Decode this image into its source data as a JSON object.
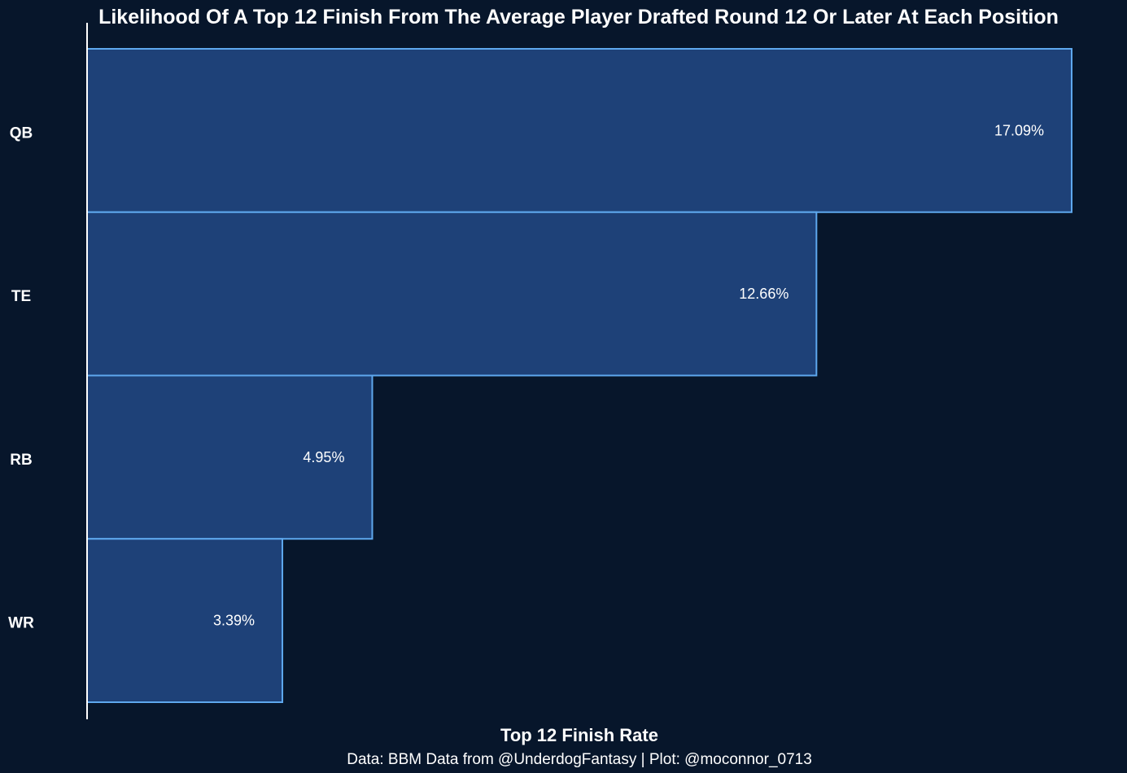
{
  "chart_data": {
    "type": "bar",
    "orientation": "horizontal",
    "title": "Likelihood Of A Top 12 Finish From The Average Player Drafted Round 12 Or Later At Each Position",
    "xlabel": "Top 12 Finish Rate",
    "ylabel": "",
    "caption": "Data: BBM Data from @UnderdogFantasy | Plot: @moconnor_0713",
    "categories": [
      "QB",
      "TE",
      "RB",
      "WR"
    ],
    "values": [
      17.09,
      12.66,
      4.95,
      3.39
    ],
    "value_labels": [
      "17.09%",
      "12.66%",
      "4.95%",
      "3.39%"
    ],
    "unit": "%",
    "xlim": [
      0,
      17.09
    ],
    "grid": false,
    "legend": "none"
  },
  "colors": {
    "background": "#07162b",
    "bar_fill": "#1e4178",
    "bar_stroke": "#5ea8ee",
    "text": "#ffffff",
    "axis": "#ffffff"
  }
}
